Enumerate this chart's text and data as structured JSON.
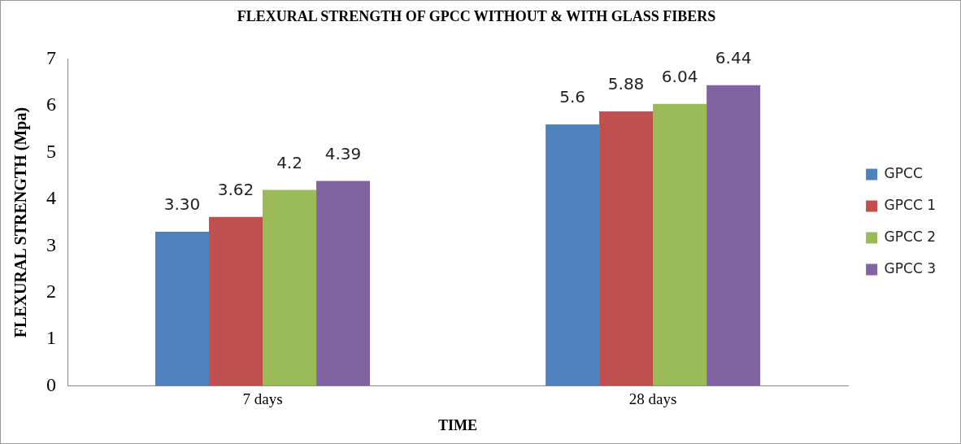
{
  "chart_data": {
    "type": "bar",
    "title": "FLEXURAL STRENGTH OF GPCC WITHOUT & WITH GLASS FIBERS",
    "xlabel": "TIME",
    "ylabel": "FLEXURAL STRENGTH (Mpa)",
    "categories": [
      "7 days",
      "28 days"
    ],
    "series": [
      {
        "name": "GPCC",
        "color": "#4f81bd",
        "values": [
          3.3,
          5.6
        ],
        "value_labels": [
          "3.30",
          "5.6"
        ]
      },
      {
        "name": "GPCC 1",
        "color": "#c0504d",
        "values": [
          3.62,
          5.88
        ],
        "value_labels": [
          "3.62",
          "5.88"
        ]
      },
      {
        "name": "GPCC 2",
        "color": "#9bbb59",
        "values": [
          4.2,
          6.04
        ],
        "value_labels": [
          "4.2",
          "6.04"
        ]
      },
      {
        "name": "GPCC 3",
        "color": "#8064a2",
        "values": [
          4.39,
          6.44
        ],
        "value_labels": [
          "4.39",
          "6.44"
        ]
      }
    ],
    "ylim": [
      0,
      7
    ],
    "yticks": [
      0,
      1,
      2,
      3,
      4,
      5,
      6,
      7
    ],
    "grid": false,
    "legend": "right"
  }
}
